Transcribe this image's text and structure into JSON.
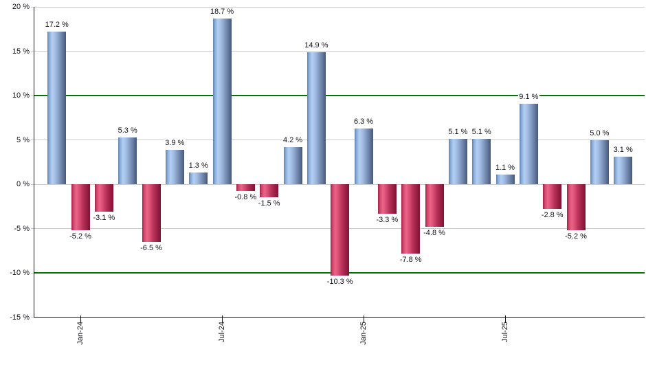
{
  "chart_data": {
    "type": "bar",
    "title": "",
    "xlabel": "",
    "ylabel": "",
    "grid": true,
    "legend": null,
    "unit": "%",
    "y_axis": {
      "min": -15,
      "max": 20,
      "tick_step": 5,
      "tick_labels": [
        "20 %",
        "15 %",
        "10 %",
        "5 %",
        "0 %",
        "-5 %",
        "-10 %",
        "-15 %"
      ]
    },
    "reference_lines": {
      "values": [
        10,
        -10
      ],
      "color": "#007700"
    },
    "values": [
      17.2,
      -5.2,
      -3.1,
      5.3,
      -6.5,
      3.9,
      1.3,
      18.7,
      -0.8,
      -1.5,
      4.2,
      14.9,
      -10.3,
      6.3,
      -3.3,
      -7.8,
      -4.8,
      5.1,
      5.1,
      1.1,
      9.1,
      -2.8,
      -5.2,
      5.0,
      3.1
    ],
    "bar_labels": [
      "17.2 %",
      "-5.2 %",
      "-3.1 %",
      "5.3 %",
      "-6.5 %",
      "3.9 %",
      "1.3 %",
      "18.7 %",
      "-0.8 %",
      "-1.5 %",
      "4.2 %",
      "14.9 %",
      "-10.3 %",
      "6.3 %",
      "-3.3 %",
      "-7.8 %",
      "-4.8 %",
      "5.1 %",
      "5.1 %",
      "1.1 %",
      "9.1 %",
      "-2.8 %",
      "-5.2 %",
      "5.0 %",
      "3.1 %"
    ],
    "x_ticks": [
      {
        "label": "Jan-24",
        "bar_index": 1
      },
      {
        "label": "Jul-24",
        "bar_index": 7
      },
      {
        "label": "Jan-25",
        "bar_index": 13
      },
      {
        "label": "Jul-25",
        "bar_index": 19
      }
    ],
    "colors": {
      "positive_bar_edge": "#6083b3",
      "positive_bar_light": "#b3cff4",
      "positive_bar_dark": "#46587a",
      "negative_bar_edge": "#a12245",
      "negative_bar_light": "#ee6487",
      "negative_bar_dark": "#7d1431",
      "gridline": "#cbcbcb",
      "reference_line": "#007700",
      "axis": "#111111",
      "text": "#101018",
      "background": "#ffffff"
    }
  }
}
